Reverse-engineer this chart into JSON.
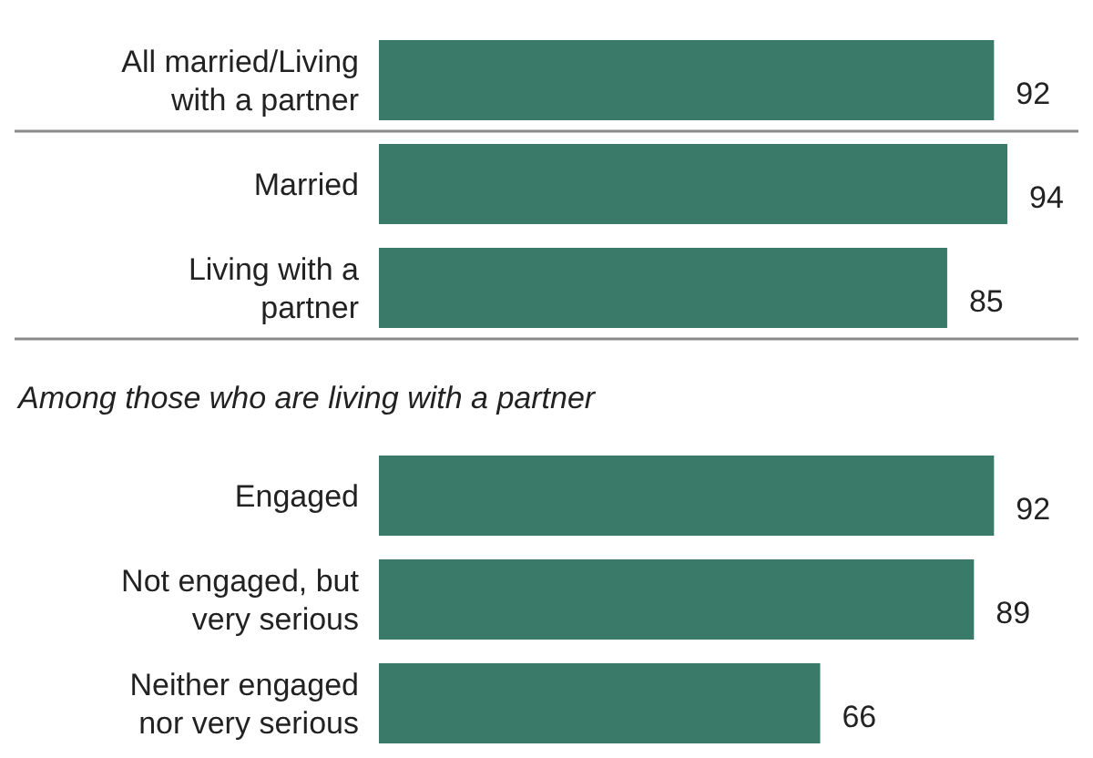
{
  "chart_data": [
    {
      "type": "bar",
      "orientation": "horizontal",
      "categories": [
        "All married/Living with a partner"
      ],
      "values": [
        92
      ],
      "color": "#3a7a68",
      "data_labels": true
    },
    {
      "type": "bar",
      "orientation": "horizontal",
      "categories": [
        "Married",
        "Living with a partner"
      ],
      "values": [
        94,
        85
      ],
      "color": "#3a7a68",
      "data_labels": true
    },
    {
      "type": "bar",
      "orientation": "horizontal",
      "title": "Among those who are living with a partner",
      "categories": [
        "Engaged",
        "Not engaged, but very serious",
        "Neither engaged nor very serious"
      ],
      "values": [
        92,
        89,
        66
      ],
      "color": "#3a7a68",
      "data_labels": true
    }
  ]
}
